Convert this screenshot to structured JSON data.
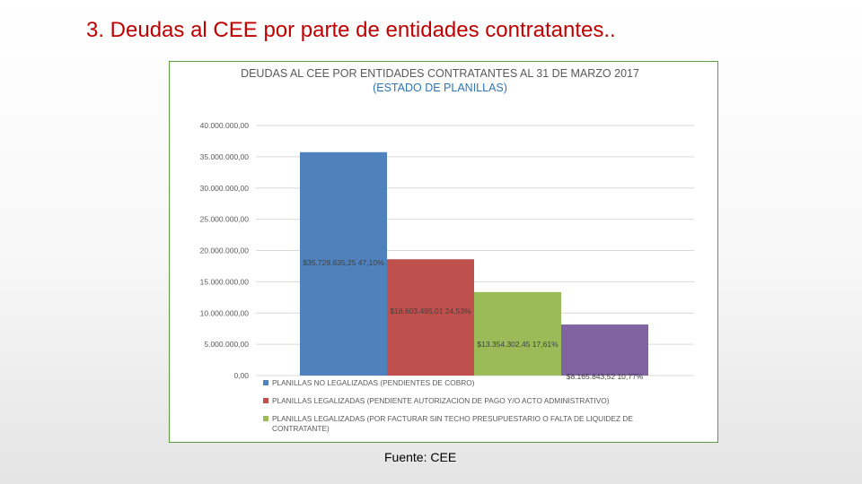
{
  "slide": {
    "title": "3. Deudas al CEE por parte de entidades contratantes..",
    "source": "Fuente: CEE"
  },
  "colors": {
    "title": "#c00000",
    "frame": "#5c9e3c",
    "grid": "#d9d9d9",
    "series": [
      "#4f81bd",
      "#c0504d",
      "#9bbb59",
      "#8064a2"
    ]
  },
  "chart_data": {
    "type": "bar",
    "title": "DEUDAS AL CEE POR ENTIDADES CONTRATANTES AL 31 DE MARZO 2017",
    "subtitle": "(ESTADO DE PLANILLAS)",
    "xlabel": "",
    "ylabel": "",
    "ylim": [
      0,
      40000000
    ],
    "yticks": [
      0,
      5000000,
      10000000,
      15000000,
      20000000,
      25000000,
      30000000,
      35000000,
      40000000
    ],
    "ytick_labels": [
      "0,00",
      "5.000.000,00",
      "10.000.000,00",
      "15.000.000,00",
      "20.000.000,00",
      "25.000.000,00",
      "30.000.000,00",
      "35.000.000,00",
      "40.000.000,00"
    ],
    "grid": true,
    "legend_position": "bottom",
    "series": [
      {
        "name": "PLANILLAS NO LEGALIZADAS (PENDIENTES DE COBRO)",
        "value": 35729635.25,
        "label": "$35.729.635,25  47,10%"
      },
      {
        "name": "PLANILLAS LEGALIZADAS (PENDIENTE AUTORIZACION DE PAGO Y/O ACTO ADMINISTRATIVO)",
        "value": 18603495.01,
        "label": "$18.603.495,01  24,53%"
      },
      {
        "name": "PLANILLAS LEGALIZADAS (POR FACTURAR SIN TECHO PRESUPUESTARIO O FALTA DE LIQUIDEZ DE CONTRATANTE)",
        "value": 13354302.45,
        "label": "$13.354.302,45  17,61%"
      },
      {
        "name": "",
        "value": 8165843.52,
        "label": "$8.165.843,52  10,77%"
      }
    ]
  }
}
